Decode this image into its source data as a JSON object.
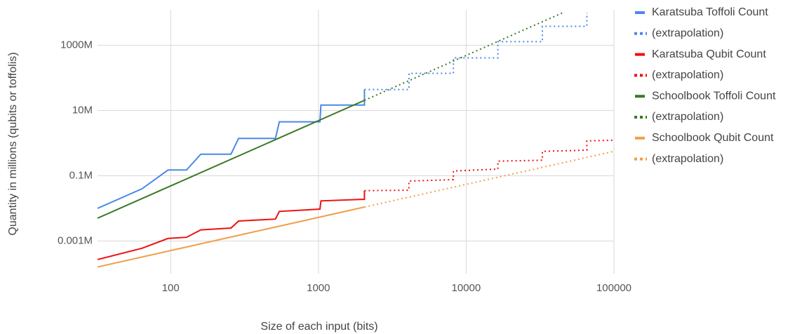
{
  "chart_data": {
    "type": "line",
    "x_label": "Size of each input (bits)",
    "y_label": "Quantity in millions (qubits or toffolis)",
    "xscale": "log",
    "yscale": "log",
    "grid": true,
    "legend": "right",
    "xlim": [
      32,
      100000
    ],
    "xticks": [
      100,
      1000,
      10000,
      100000
    ],
    "ylim": [
      0.0001,
      10000
    ],
    "yticks": [
      {
        "value": 0.001,
        "label": "0.001M"
      },
      {
        "value": 0.1,
        "label": "0.1M"
      },
      {
        "value": 10,
        "label": "10M"
      },
      {
        "value": 1000,
        "label": "1000M"
      }
    ],
    "series": [
      {
        "name": "Karatsuba Toffoli Count",
        "color": "#4a89e8",
        "dashed": false,
        "x": [
          32,
          64,
          96,
          128,
          160,
          256,
          288,
          512,
          544,
          1024,
          1040,
          2048,
          2048
        ],
        "values": [
          0.01,
          0.04,
          0.15,
          0.15,
          0.46,
          0.46,
          1.4,
          1.4,
          4.5,
          4.5,
          14.7,
          14.7,
          44
        ]
      },
      {
        "name": "(extrapolation)",
        "color": "#4a89e8",
        "dashed": true,
        "x": [
          2048,
          4096,
          4096,
          8192,
          8192,
          16384,
          16384,
          32768,
          32768,
          65536,
          65536
        ],
        "values": [
          44,
          44,
          138,
          138,
          410,
          410,
          1290,
          1290,
          3800,
          3800,
          10000
        ]
      },
      {
        "name": "Karatsuba Qubit Count",
        "color": "#ee1111",
        "dashed": false,
        "x": [
          32,
          64,
          96,
          128,
          160,
          256,
          288,
          512,
          544,
          1024,
          1040,
          2048,
          2048
        ],
        "values": [
          0.00027,
          0.0006,
          0.0012,
          0.0013,
          0.0022,
          0.0025,
          0.0041,
          0.0047,
          0.0081,
          0.0095,
          0.017,
          0.019,
          0.035
        ]
      },
      {
        "name": "(extrapolation)",
        "color": "#ee1111",
        "dashed": true,
        "x": [
          2048,
          4096,
          4096,
          8192,
          8192,
          16384,
          16384,
          32768,
          32768,
          65536,
          65536,
          100000
        ],
        "values": [
          0.035,
          0.036,
          0.069,
          0.076,
          0.14,
          0.16,
          0.28,
          0.3,
          0.56,
          0.61,
          1.17,
          1.23
        ]
      },
      {
        "name": "Schoolbook Toffoli Count",
        "color": "#3a7a24",
        "dashed": false,
        "x": [
          32,
          2048
        ],
        "values": [
          0.005,
          20.5
        ]
      },
      {
        "name": "(extrapolation)",
        "color": "#3a7a24",
        "dashed": true,
        "x": [
          2048,
          45000
        ],
        "values": [
          20.5,
          9900
        ]
      },
      {
        "name": "Schoolbook Qubit Count",
        "color": "#f0a04b",
        "dashed": false,
        "x": [
          32,
          2048
        ],
        "values": [
          0.00016,
          0.011
        ]
      },
      {
        "name": "(extrapolation)",
        "color": "#f0a04b",
        "dashed": true,
        "x": [
          2048,
          100000
        ],
        "values": [
          0.011,
          0.56
        ]
      }
    ]
  }
}
